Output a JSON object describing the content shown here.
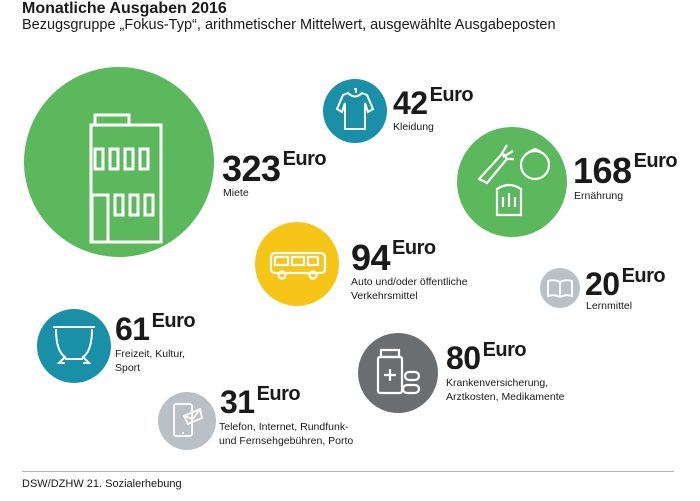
{
  "title": "Monatliche Ausgaben 2016",
  "subtitle": "Bezugsgruppe „Fokus-Typ“, arithmetischer Mittelwert, ausgewählte Ausgabeposten",
  "source": "DSW/DZHW 21. Sozialerhebung",
  "unit": "Euro",
  "chart_data": {
    "type": "bubble",
    "title": "Monatliche Ausgaben 2016",
    "subtitle": "Bezugsgruppe „Fokus-Typ“, arithmetischer Mittelwert, ausgewählte Ausgabeposten",
    "unit": "Euro",
    "categories": [
      "Miete",
      "Kleidung",
      "Ernährung",
      "Auto und/oder öffentliche Verkehrsmittel",
      "Lernmittel",
      "Freizeit, Kultur, Sport",
      "Krankenversicherung, Arztkosten, Medikamente",
      "Telefon, Internet, Rundfunk- und Fernsehgebühren, Porto"
    ],
    "values": [
      323,
      42,
      168,
      94,
      20,
      61,
      80,
      31
    ],
    "items": [
      {
        "id": "miete",
        "value": 323,
        "number": "323",
        "label": "Miete",
        "color": "#5cb85c",
        "icon": "building-icon"
      },
      {
        "id": "kleidung",
        "value": 42,
        "number": "42",
        "label": "Kleidung",
        "color": "#1a90a8",
        "icon": "shirt-icon"
      },
      {
        "id": "ernaehrung",
        "value": 168,
        "number": "168",
        "label": "Ernährung",
        "color": "#5cb85c",
        "icon": "food-icon"
      },
      {
        "id": "verkehr",
        "value": 94,
        "number": "94",
        "label_lines": [
          "Auto und/oder öffentliche",
          "Verkehrsmittel"
        ],
        "color": "#f5c518",
        "icon": "bus-icon"
      },
      {
        "id": "lernmittel",
        "value": 20,
        "number": "20",
        "label": "Lernmittel",
        "color": "#b9c0c6",
        "icon": "book-icon"
      },
      {
        "id": "freizeit",
        "value": 61,
        "number": "61",
        "label_lines": [
          "Freizeit, Kultur,",
          "Sport"
        ],
        "color": "#1a90a8",
        "icon": "theater-icon"
      },
      {
        "id": "gesundheit",
        "value": 80,
        "number": "80",
        "label_lines": [
          "Krankenversicherung,",
          "Arztkosten, Medikamente"
        ],
        "color": "#6b6e70",
        "icon": "medicine-icon"
      },
      {
        "id": "telefon",
        "value": 31,
        "number": "31",
        "label_lines": [
          "Telefon, Internet, Rundfunk-",
          "und Fernsehgebühren, Porto"
        ],
        "color": "#b9c0c6",
        "icon": "phone-icon"
      }
    ]
  }
}
